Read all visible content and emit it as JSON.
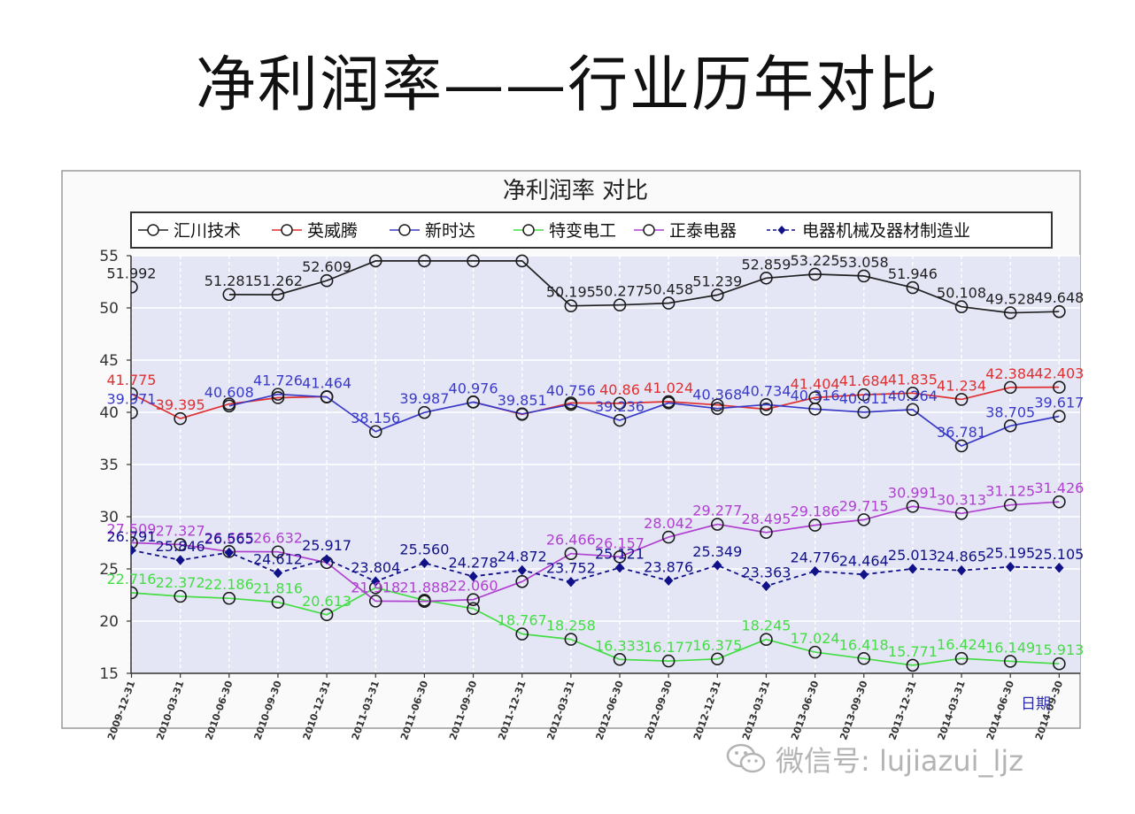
{
  "slide": {
    "title": "净利润率——行业历年对比",
    "watermark": "微信号: lujiazui_ljz"
  },
  "chart_data": {
    "type": "line",
    "title": "净利润率  对比",
    "xlabel": "日期",
    "ylabel": "",
    "ylim": [
      15,
      55
    ],
    "yticks": [
      15,
      20,
      25,
      30,
      35,
      40,
      45,
      50,
      55
    ],
    "grid": true,
    "legend_position": "top",
    "x": [
      "2009-12-31",
      "2010-03-31",
      "2010-06-30",
      "2010-09-30",
      "2010-12-31",
      "2011-03-31",
      "2011-06-30",
      "2011-09-30",
      "2011-12-31",
      "2012-03-31",
      "2012-06-30",
      "2012-09-30",
      "2012-12-31",
      "2013-03-31",
      "2013-06-30",
      "2013-09-30",
      "2013-12-31",
      "2014-03-31",
      "2014-06-30",
      "2014-09-30"
    ],
    "x_tick_labels": [
      "2009-12-31",
      "2010-03-31",
      "2010-06-30",
      "2010-09-30",
      "2010-12-31",
      "2011-03-31",
      "2011-06-30",
      "2011-09-30",
      "2011-12-31",
      "2012-03-31",
      "2012-06-30",
      "2012-09-30",
      "2012-12-31",
      "2013-03-31",
      "2013-06-30",
      "2013-09-30",
      "2013-12-31",
      "2014-03-31",
      "2014-06-30",
      "2014-09-30"
    ],
    "series": [
      {
        "name": "汇川技术",
        "color": "#222222",
        "marker": "circle",
        "values": [
          51.992,
          null,
          51.281,
          51.262,
          52.609,
          54.5,
          54.5,
          54.5,
          54.5,
          50.195,
          50.277,
          50.458,
          51.239,
          52.859,
          53.225,
          53.058,
          51.946,
          50.108,
          49.528,
          49.648
        ],
        "labels": [
          "51.992",
          "",
          "51.281",
          "51.262",
          "52.609",
          "",
          "",
          "",
          "",
          "50.195",
          "50.277",
          "50.458",
          "51.239",
          "52.859",
          "53.225",
          "53.058",
          "51.946",
          "50.108",
          "49.528",
          "49.648"
        ]
      },
      {
        "name": "英威腾",
        "color": "#e03030",
        "marker": "circle",
        "values": [
          41.775,
          39.395,
          40.8,
          41.4,
          41.5,
          null,
          null,
          41.0,
          39.8,
          40.9,
          40.86,
          41.024,
          40.7,
          40.3,
          41.404,
          41.684,
          41.835,
          41.234,
          42.384,
          42.403
        ],
        "labels": [
          "41.775",
          "39.395",
          "",
          "",
          "",
          "",
          "",
          "",
          "",
          "",
          "40.86",
          "41.024",
          "",
          "",
          "41.404",
          "41.684",
          "41.835",
          "41.234",
          "42.384",
          "42.403"
        ]
      },
      {
        "name": "新时达",
        "color": "#3a3ac8",
        "marker": "circle",
        "values": [
          39.971,
          null,
          40.608,
          41.726,
          41.464,
          38.156,
          39.987,
          40.976,
          39.851,
          40.756,
          39.236,
          40.9,
          40.368,
          40.734,
          40.316,
          40.011,
          40.264,
          36.781,
          38.705,
          39.617
        ],
        "labels": [
          "39.971",
          "",
          "40.608",
          "41.726",
          "41.464",
          "38.156",
          "39.987",
          "40.976",
          "39.851",
          "40.756",
          "39.236",
          "",
          "40.368",
          "40.734",
          "40.316",
          "40.011",
          "40.264",
          "36.781",
          "38.705",
          "39.617"
        ]
      },
      {
        "name": "特变电工",
        "color": "#44dd44",
        "marker": "circle",
        "values": [
          22.716,
          22.372,
          22.186,
          21.816,
          20.613,
          23.2,
          22.0,
          21.2,
          18.767,
          18.258,
          16.333,
          16.177,
          16.375,
          18.245,
          17.024,
          16.418,
          15.771,
          16.424,
          16.149,
          15.913
        ],
        "labels": [
          "22.716",
          "22.372",
          "22.186",
          "21.816",
          "20.613",
          "",
          "",
          "",
          "18.767",
          "18.258",
          "16.333",
          "16.177",
          "16.375",
          "18.245",
          "17.024",
          "16.418",
          "15.771",
          "16.424",
          "16.149",
          "15.913"
        ]
      },
      {
        "name": "正泰电器",
        "color": "#b040d0",
        "marker": "circle",
        "values": [
          27.509,
          27.327,
          26.665,
          26.632,
          25.604,
          21.918,
          21.888,
          22.06,
          23.79,
          26.466,
          26.157,
          28.042,
          29.277,
          28.495,
          29.186,
          29.715,
          30.991,
          30.313,
          31.125,
          31.426
        ],
        "labels": [
          "27.509",
          "27.327",
          "26.665",
          "26.632",
          "",
          "21.918",
          "21.888",
          "22.060",
          "",
          "26.466",
          "26.157",
          "28.042",
          "29.277",
          "28.495",
          "29.186",
          "29.715",
          "30.991",
          "30.313",
          "31.125",
          "31.426"
        ]
      },
      {
        "name": "电器机械及器材制造业",
        "color": "#111188",
        "marker": "diamond",
        "dashed": true,
        "values": [
          26.791,
          25.846,
          26.565,
          24.612,
          25.917,
          23.804,
          25.56,
          24.278,
          24.872,
          23.752,
          25.121,
          23.876,
          25.349,
          23.363,
          24.776,
          24.464,
          25.013,
          24.865,
          25.195,
          25.105
        ],
        "labels": [
          "26.791",
          "25.846",
          "26.565",
          "24.612",
          "25.917",
          "23.804",
          "25.560",
          "24.278",
          "24.872",
          "23.752",
          "25.121",
          "23.876",
          "25.349",
          "23.363",
          "24.776",
          "24.464",
          "25.013",
          "24.865",
          "25.195",
          "25.105"
        ]
      }
    ]
  }
}
